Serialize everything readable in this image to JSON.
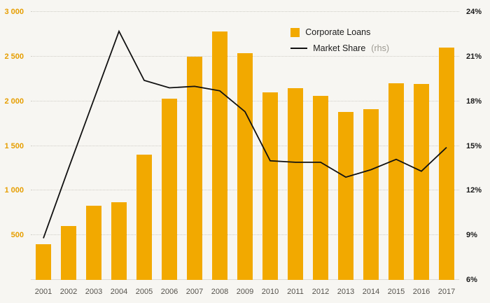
{
  "chart_data": {
    "type": "bar",
    "title": "",
    "categories": [
      "2001",
      "2002",
      "2003",
      "2004",
      "2005",
      "2006",
      "2007",
      "2008",
      "2009",
      "2010",
      "2011",
      "2012",
      "2013",
      "2014",
      "2015",
      "2016",
      "2017"
    ],
    "series": [
      {
        "name": "Corporate Loans",
        "type": "bar",
        "axis": "left",
        "color": "#F2A900",
        "values": [
          400,
          600,
          830,
          870,
          1400,
          2030,
          2500,
          2780,
          2540,
          2100,
          2150,
          2060,
          1880,
          1910,
          2200,
          2190,
          2600
        ]
      },
      {
        "name": "Market Share",
        "note": "(rhs)",
        "type": "line",
        "axis": "right",
        "color": "#111111",
        "values": [
          8.8,
          13.5,
          18.1,
          22.7,
          19.4,
          18.9,
          19.0,
          18.7,
          17.3,
          14.0,
          13.9,
          13.9,
          12.9,
          13.4,
          14.1,
          13.3,
          14.9
        ]
      }
    ],
    "left_axis": {
      "min": 0,
      "max": 3000,
      "tick_values": [
        500,
        1000,
        1500,
        2000,
        2500,
        3000
      ],
      "tick_labels": [
        "500",
        "1 000",
        "1 500",
        "2 000",
        "2 500",
        "3 000"
      ],
      "color": "#E69E00"
    },
    "right_axis": {
      "min": 6,
      "max": 24,
      "tick_values": [
        6,
        9,
        12,
        15,
        18,
        21,
        24
      ],
      "tick_labels": [
        "6%",
        "9%",
        "12%",
        "15%",
        "18%",
        "21%",
        "24%"
      ]
    },
    "legend": [
      {
        "label": "Corporate Loans",
        "note": "",
        "swatch": "bar"
      },
      {
        "label": "Market Share",
        "note": "(rhs)",
        "swatch": "line"
      }
    ],
    "grid": "horizontal-dotted",
    "legend_position": "top-right"
  }
}
